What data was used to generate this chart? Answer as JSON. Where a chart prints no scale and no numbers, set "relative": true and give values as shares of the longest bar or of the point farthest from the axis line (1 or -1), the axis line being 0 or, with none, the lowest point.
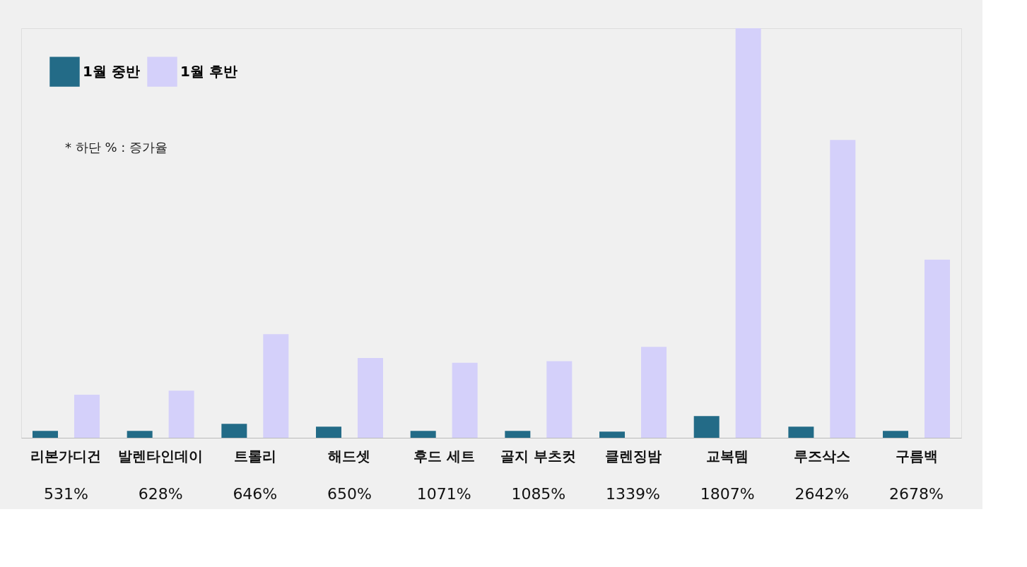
{
  "chart_data": {
    "type": "bar",
    "relative": true,
    "categories": [
      "리본가디건",
      "발렌타인데이",
      "트롤리",
      "해드셋",
      "후드 세트",
      "골지 부츠컷",
      "클렌징밤",
      "교복템",
      "루즈삭스",
      "구름백"
    ],
    "series": [
      {
        "name": "1월 중반",
        "color": "#236b87",
        "values": [
          0.017,
          0.017,
          0.034,
          0.027,
          0.017,
          0.017,
          0.015,
          0.053,
          0.027,
          0.017
        ]
      },
      {
        "name": "1월 후반",
        "color": "#d4d0fa",
        "values": [
          0.105,
          0.115,
          0.253,
          0.195,
          0.183,
          0.187,
          0.222,
          1,
          0.727,
          0.435
        ]
      }
    ],
    "legend": "top left",
    "annotations": [
      "* 하단 % : 증가율",
      "531%",
      "628%",
      "646%",
      "650%",
      "1071%",
      "1085%",
      "1339%",
      "1807%",
      "2642%",
      "2678%"
    ]
  }
}
